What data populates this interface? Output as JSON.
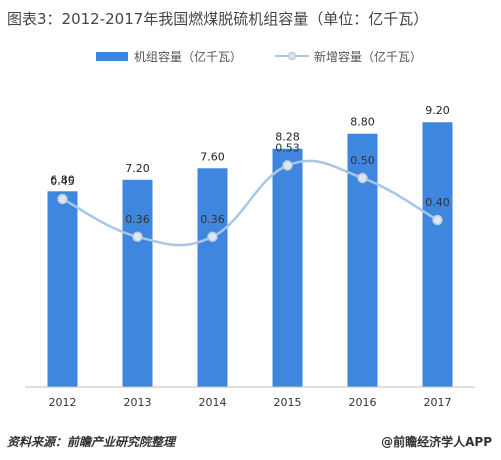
{
  "title": "图表3：2012-2017年我国燃煤脱硫机组容量（单位：亿千瓦）",
  "source": "资料来源：前瞻产业研究院整理",
  "brand": "@前瞻经济学人APP",
  "colors": {
    "bar": "#3f86de",
    "line": "#a9c6e4",
    "marker_fill": "#dfe6ee",
    "marker_stroke": "#b7cbe2",
    "axis": "#bfbfbf"
  },
  "chart_data": {
    "type": "bar",
    "categories": [
      "2012",
      "2013",
      "2014",
      "2015",
      "2016",
      "2017"
    ],
    "series": [
      {
        "name": "机组容量（亿千瓦）",
        "type": "bar",
        "values": [
          6.8,
          7.2,
          7.6,
          8.28,
          8.8,
          9.2
        ],
        "labels": [
          "6.80",
          "7.20",
          "7.60",
          "8.28",
          "8.80",
          "9.20"
        ]
      },
      {
        "name": "新增容量（亿千瓦）",
        "type": "line",
        "values": [
          0.45,
          0.36,
          0.36,
          0.53,
          0.5,
          0.4
        ],
        "labels": [
          "0.45",
          "0.36",
          "0.36",
          "0.53",
          "0.50",
          "0.40"
        ]
      }
    ],
    "bar_axis_range": [
      0,
      10
    ],
    "line_axis_range": [
      0,
      0.8
    ],
    "grid": false,
    "legend_position": "top-center"
  }
}
